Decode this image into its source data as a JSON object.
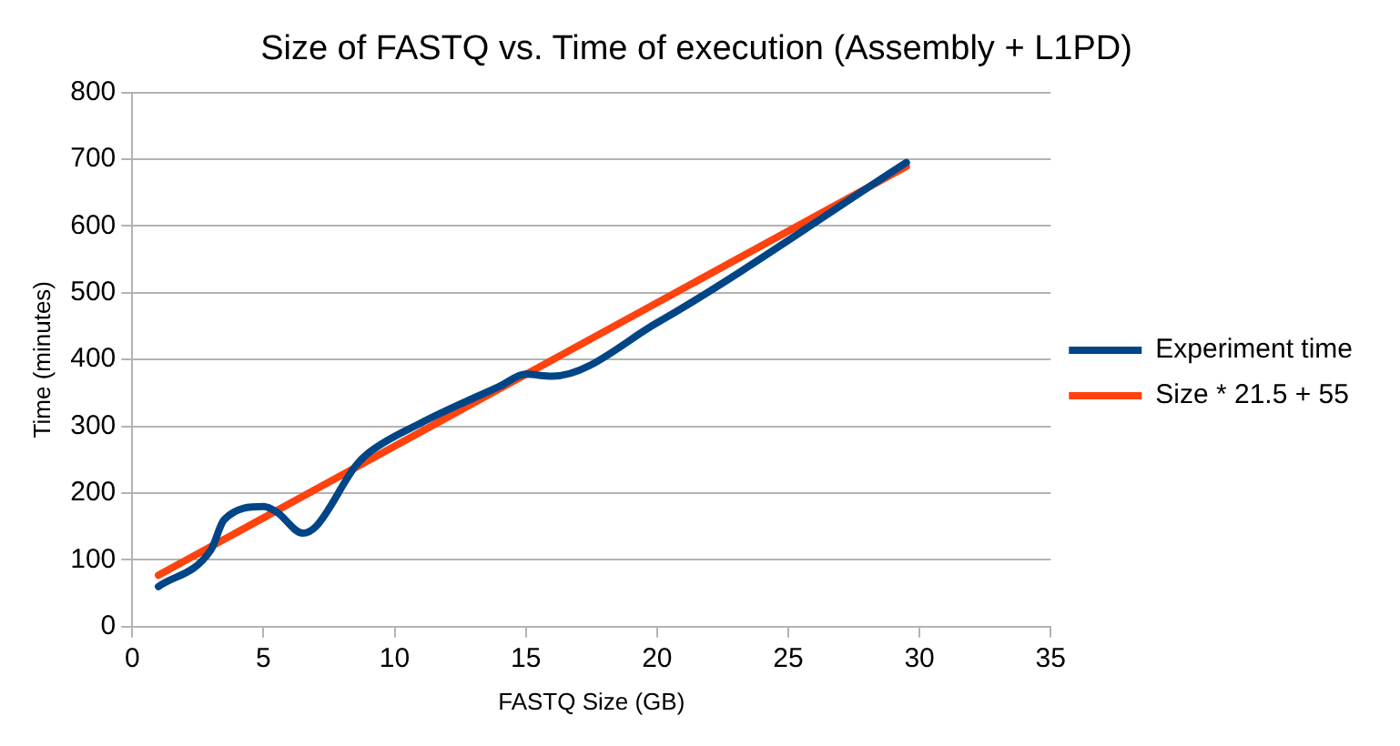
{
  "chart_data": {
    "type": "line",
    "title": "Size of FASTQ vs. Time of execution (Assembly + L1PD)",
    "xlabel": "FASTQ Size (GB)",
    "ylabel": "Time (minutes)",
    "xlim": [
      0,
      35
    ],
    "xticks": [
      0,
      5,
      10,
      15,
      20,
      25,
      30,
      35
    ],
    "ylim": [
      0,
      800
    ],
    "yticks": [
      0,
      100,
      200,
      300,
      400,
      500,
      600,
      700,
      800
    ],
    "grid": "y",
    "legend": "right",
    "marker": "none",
    "line_style": "solid",
    "series": [
      {
        "name": "Experiment time",
        "color": "#004586",
        "x": [
          1,
          3,
          3.5,
          5,
          5.5,
          6.5,
          7,
          8.5,
          9,
          11,
          14,
          15,
          16,
          20,
          29.5
        ],
        "values": [
          60,
          115,
          160,
          180,
          172,
          140,
          150,
          240,
          260,
          305,
          360,
          378,
          375,
          455,
          695
        ]
      },
      {
        "name": "Size * 21.5 + 55",
        "color": "#ff420e",
        "x": [
          1,
          29.5
        ],
        "values": [
          77,
          689
        ]
      }
    ]
  }
}
